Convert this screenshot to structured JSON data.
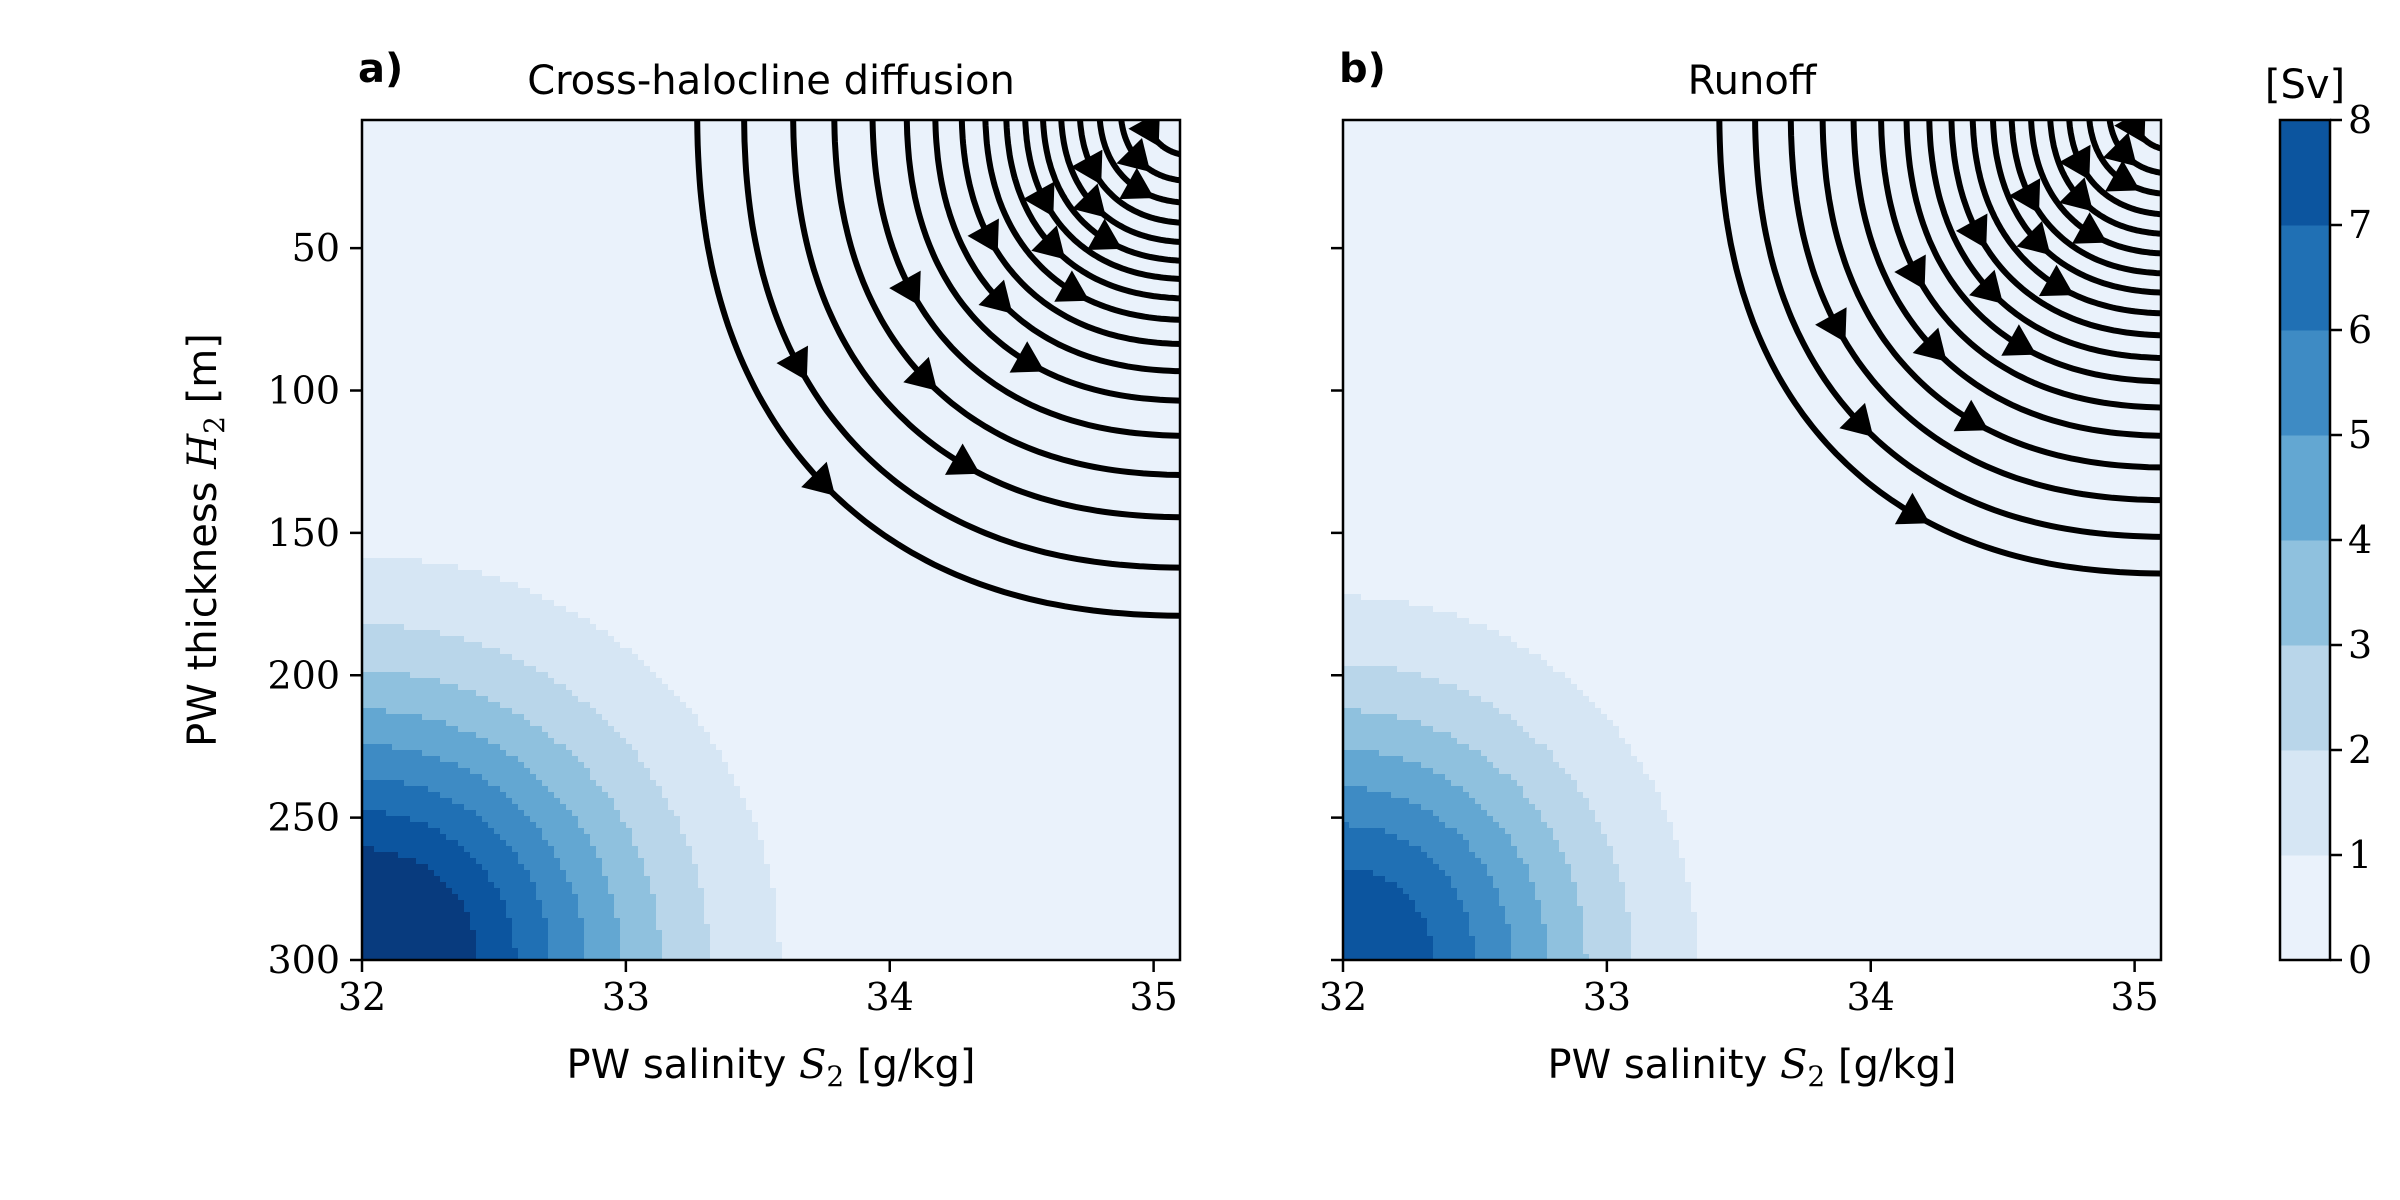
{
  "figure": {
    "colorbar_unit": "[Sv]"
  },
  "chart_data": [
    {
      "panel_label": "a)",
      "type": "heatmap",
      "subtype": "filled-contour with streamlines",
      "title": "Cross-halocline diffusion",
      "xlabel_pre": "PW salinity ",
      "xlabel_sym": "S",
      "xlabel_sub": "2",
      "xlabel_post": " [g/kg]",
      "ylabel_pre": "PW thickness ",
      "ylabel_sym": "H",
      "ylabel_sub": "2",
      "ylabel_post": " [m]",
      "xlim": [
        32,
        35.1
      ],
      "ylim": [
        5,
        300
      ],
      "y_inverted": true,
      "xticks": [
        32,
        33,
        34,
        35
      ],
      "yticks": [
        50,
        100,
        150,
        200,
        250,
        300
      ],
      "show_ytick_labels": true,
      "colorbar_range": [
        0,
        8
      ],
      "field_strength": 9.5,
      "field_shape": {
        "dS": 0.34,
        "dH": 0.32
      },
      "stream_sources": [
        0.1,
        0.22,
        0.36,
        0.52,
        0.7,
        0.9,
        1.12,
        1.38,
        1.7,
        2.1,
        2.6,
        3.2,
        4.0,
        5.0,
        6.2,
        7.8,
        9.5
      ],
      "flow_direction": "toward lower salinity and greater thickness (bottom-left)"
    },
    {
      "panel_label": "b)",
      "type": "heatmap",
      "subtype": "filled-contour with streamlines",
      "title": "Runoff",
      "xlabel_pre": "PW salinity ",
      "xlabel_sym": "S",
      "xlabel_sub": "2",
      "xlabel_post": " [g/kg]",
      "xlim": [
        32,
        35.1
      ],
      "ylim": [
        5,
        300
      ],
      "y_inverted": true,
      "xticks": [
        32,
        33,
        34,
        35
      ],
      "yticks": [
        50,
        100,
        150,
        200,
        250,
        300
      ],
      "show_ytick_labels": false,
      "colorbar_range": [
        0,
        8
      ],
      "field_strength": 8.0,
      "field_shape": {
        "dS": 0.3,
        "dH": 0.3
      },
      "stream_sources": [
        0.08,
        0.18,
        0.3,
        0.45,
        0.62,
        0.82,
        1.05,
        1.3,
        1.6,
        1.95,
        2.35,
        2.8,
        3.35,
        4.0,
        4.8,
        5.7,
        6.8,
        8.0
      ],
      "flow_direction": "toward lower salinity and greater thickness (bottom-left)"
    }
  ],
  "colorbar": {
    "type": "colorbar",
    "label": "[Sv]",
    "levels": [
      0,
      1,
      2,
      3,
      4,
      5,
      6,
      7,
      8
    ],
    "ticks": [
      0,
      1,
      2,
      3,
      4,
      5,
      6,
      7,
      8
    ],
    "colors": [
      "#eaf2fb",
      "#d6e6f4",
      "#b9d6ea",
      "#8fc1de",
      "#63a7d2",
      "#3e8bc4",
      "#2070b4",
      "#0c559f",
      "#083b7e"
    ]
  }
}
